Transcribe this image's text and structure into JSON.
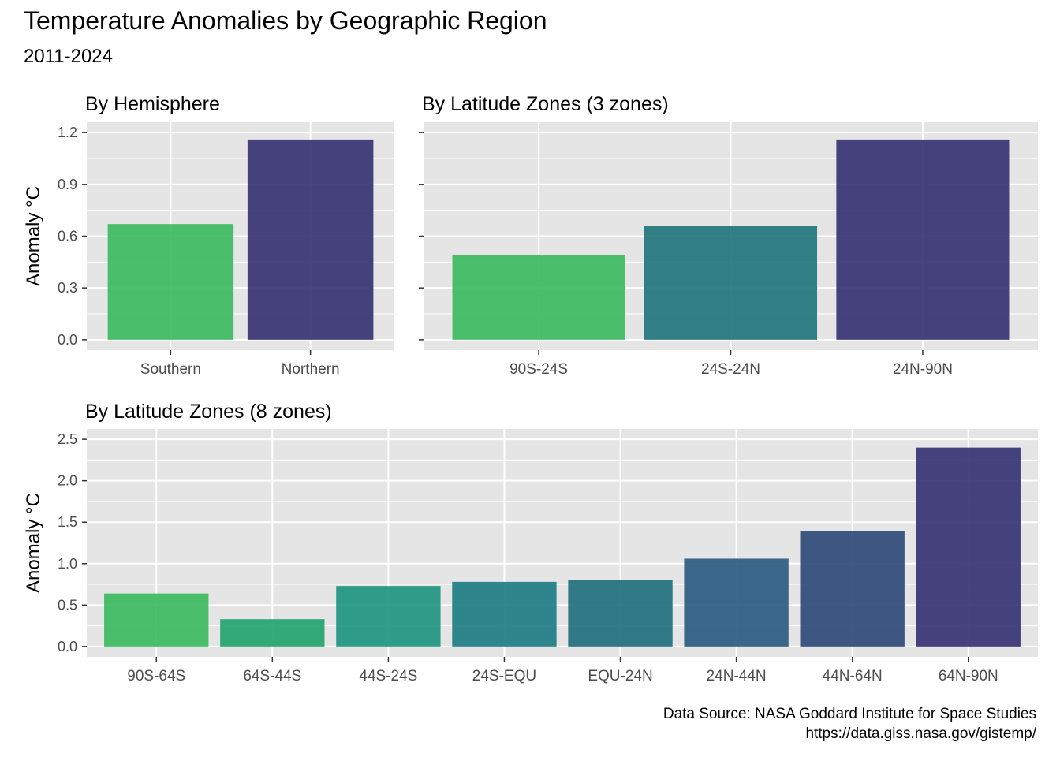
{
  "title": "Temperature Anomalies by Geographic Region",
  "subtitle": "2011-2024",
  "caption": {
    "line1": "Data Source: NASA Goddard Institute for Space Studies",
    "line2": "https://data.giss.nasa.gov/gistemp/"
  },
  "colors": {
    "panel_bg": "#e5e5e5",
    "grid": "#ffffff",
    "axis_text": "#4d4d4d"
  },
  "chart_data": [
    {
      "type": "bar",
      "title": "By Hemisphere",
      "ylabel": "Anomaly °C",
      "ylim": [
        0,
        1.2
      ],
      "yticks": [
        "0.0",
        "0.3",
        "0.6",
        "0.9",
        "1.2"
      ],
      "categories": [
        "Southern",
        "Northern"
      ],
      "values": [
        0.67,
        1.16
      ],
      "colors": [
        "#3dbb5f",
        "#373374"
      ]
    },
    {
      "type": "bar",
      "title": "By Latitude Zones (3 zones)",
      "ylabel": "",
      "ylim": [
        0,
        1.2
      ],
      "categories": [
        "90S-24S",
        "24S-24N",
        "24N-90N"
      ],
      "values": [
        0.49,
        0.66,
        1.16
      ],
      "colors": [
        "#3dbb5f",
        "#22767c",
        "#373374"
      ]
    },
    {
      "type": "bar",
      "title": "By Latitude Zones (8 zones)",
      "ylabel": "Anomaly °C",
      "ylim": [
        0,
        2.5
      ],
      "yticks": [
        "0.0",
        "0.5",
        "1.0",
        "1.5",
        "2.0",
        "2.5"
      ],
      "categories": [
        "90S-64S",
        "64S-44S",
        "44S-24S",
        "24S-EQU",
        "EQU-24N",
        "24N-44N",
        "44N-64N",
        "64N-90N"
      ],
      "values": [
        0.64,
        0.33,
        0.73,
        0.78,
        0.8,
        1.06,
        1.39,
        2.4
      ],
      "colors": [
        "#3dbb5f",
        "#23a470",
        "#1f9681",
        "#207d84",
        "#22707e",
        "#2b5b82",
        "#2f4a79",
        "#373374"
      ]
    }
  ]
}
